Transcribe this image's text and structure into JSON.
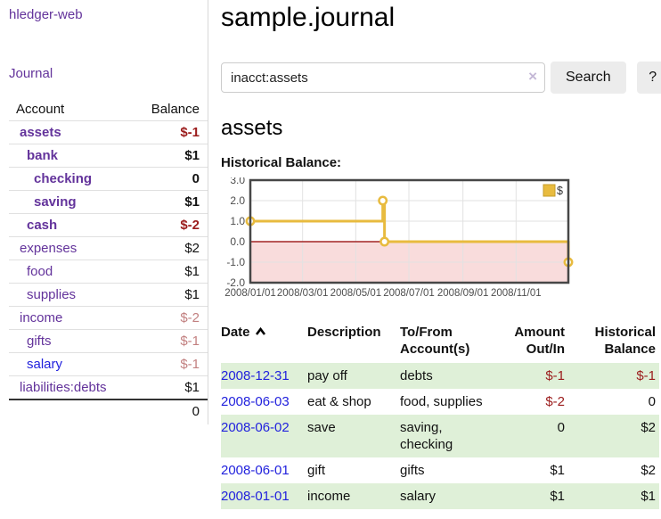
{
  "app_title": "hledger-web",
  "nav": {
    "journal": "Journal"
  },
  "sidebar_accounts": {
    "headers": [
      "Account",
      "Balance"
    ],
    "rows": [
      {
        "account": "assets",
        "balance": "$-1",
        "indent": 0,
        "bold": true,
        "neg": "strong"
      },
      {
        "account": "bank",
        "balance": "$1",
        "indent": 1,
        "bold": true,
        "neg": null
      },
      {
        "account": "checking",
        "balance": "0",
        "indent": 2,
        "bold": true,
        "neg": null
      },
      {
        "account": "saving",
        "balance": "$1",
        "indent": 2,
        "bold": true,
        "neg": null
      },
      {
        "account": "cash",
        "balance": "$-2",
        "indent": 1,
        "bold": true,
        "neg": "strong"
      },
      {
        "account": "expenses",
        "balance": "$2",
        "indent": 0,
        "bold": false,
        "neg": null
      },
      {
        "account": "food",
        "balance": "$1",
        "indent": 1,
        "bold": false,
        "neg": null
      },
      {
        "account": "supplies",
        "balance": "$1",
        "indent": 1,
        "bold": false,
        "neg": null
      },
      {
        "account": "income",
        "balance": "$-2",
        "indent": 0,
        "bold": false,
        "neg": "soft"
      },
      {
        "account": "gifts",
        "balance": "$-1",
        "indent": 1,
        "bold": false,
        "neg": "soft"
      },
      {
        "account": "salary",
        "balance": "$-1",
        "indent": 1,
        "bold": false,
        "neg": "soft",
        "link": "blue"
      },
      {
        "account": "liabilities:debts",
        "balance": "$1",
        "indent": 0,
        "bold": false,
        "neg": null
      }
    ],
    "total": "0"
  },
  "header": {
    "title": "sample.journal"
  },
  "search": {
    "query": "inacct:assets",
    "clear_icon": "×",
    "button": "Search",
    "help_button": "?"
  },
  "account_page": {
    "title": "assets",
    "chart_label": "Historical Balance:"
  },
  "chart_data": {
    "type": "line",
    "title": "Historical Balance",
    "legend": {
      "position": "top-right",
      "entries": [
        "$"
      ]
    },
    "series": [
      {
        "name": "$",
        "step": true,
        "color": "#e8bb3f",
        "marker": "open-circle",
        "points": [
          [
            "2008-01-01",
            1
          ],
          [
            "2008-06-01",
            2
          ],
          [
            "2008-06-03",
            0
          ],
          [
            "2008-12-31",
            -1
          ]
        ]
      }
    ],
    "xlim": [
      "2008-01-01",
      "2008-12-31"
    ],
    "ylim": [
      -2,
      3
    ],
    "x_ticks": [
      "2008/01/01",
      "2008/03/01",
      "2008/05/01",
      "2008/07/01",
      "2008/09/01",
      "2008/11/01"
    ],
    "y_ticks": [
      3.0,
      2.0,
      1.0,
      0.0,
      -1.0,
      -2.0
    ],
    "grid": true,
    "grid_color": "#e2e2e2",
    "negative_region_fill": "#f9dcdc",
    "zero_line_color": "#a32424",
    "plot_border_color": "#474747",
    "axis_text_color": "#4d4d4d",
    "legend_box_border": "#c59d2b"
  },
  "register": {
    "headers": [
      "Date",
      "Description",
      "To/From Account(s)",
      "Amount Out/In",
      "Historical Balance"
    ],
    "sort": {
      "column": "Date",
      "direction": "ascending"
    },
    "rows": [
      {
        "date": "2008-12-31",
        "description": "pay off",
        "accounts": "debts",
        "amount": "$-1",
        "balance": "$-1"
      },
      {
        "date": "2008-06-03",
        "description": "eat & shop",
        "accounts": "food, supplies",
        "amount": "$-2",
        "balance": "0"
      },
      {
        "date": "2008-06-02",
        "description": "save",
        "accounts": "saving, checking",
        "amount": "0",
        "balance": "$2"
      },
      {
        "date": "2008-06-01",
        "description": "gift",
        "accounts": "gifts",
        "amount": "$1",
        "balance": "$2"
      },
      {
        "date": "2008-01-01",
        "description": "income",
        "accounts": "salary",
        "amount": "$1",
        "balance": "$1"
      }
    ]
  },
  "colors": {
    "accent_purple": "#63339b",
    "link_blue": "#2222dd",
    "negative": "#9b1c1c",
    "negative_soft": "#c28080",
    "success_row": "#dff0d8",
    "button_bg": "#ececec"
  }
}
